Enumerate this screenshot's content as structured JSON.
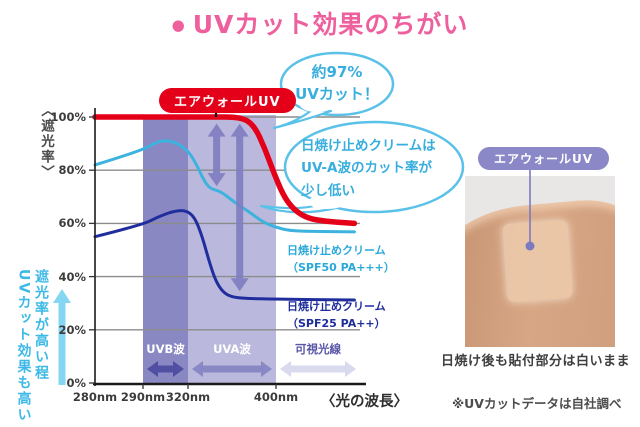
{
  "title": {
    "bullet": "●",
    "text": "UVカット効果のちがい"
  },
  "colors": {
    "accent_pink": "#ee5f9e",
    "airwall_red": "#e50019",
    "spf50_cyan": "#3cb3de",
    "spf25_navy": "#1f2e9c",
    "uvb_band": "#8a88c2",
    "uva_band": "#bab8dc",
    "gap_arrow_purple": "#7f7dc0",
    "bubble_cyan": "#5ac1e8",
    "photo_tag_purple": "#8a88c6",
    "note_cyan": "#3db9e7"
  },
  "chart_data": {
    "type": "line",
    "xlabel": "〈光の波長〉",
    "ylabel": "〈遮光率〉",
    "ylim": [
      0,
      100
    ],
    "grid": true,
    "y_ticks": [
      {
        "label": "100%",
        "pct": 100
      },
      {
        "label": "80%",
        "pct": 80
      },
      {
        "label": "60%",
        "pct": 60
      },
      {
        "label": "40%",
        "pct": 40
      },
      {
        "label": "20%",
        "pct": 20
      },
      {
        "label": "0%",
        "pct": 0
      }
    ],
    "x_ticks": [
      {
        "label": "280nm",
        "nm": 280
      },
      {
        "label": "290nm",
        "nm": 290
      },
      {
        "label": "320nm",
        "nm": 320
      },
      {
        "label": "400nm",
        "nm": 400
      }
    ],
    "bands": [
      {
        "label": "UVB波",
        "from": 290,
        "to": 320,
        "fill": "#8a88c2",
        "arrow": "#514fa1",
        "text_color": "#ffffff"
      },
      {
        "label": "UVA波",
        "from": 320,
        "to": 400,
        "fill": "#bab8dc",
        "arrow": "#8a88c4",
        "text_color": "#ffffff"
      },
      {
        "label": "可視光線",
        "from": 400,
        "to": 475,
        "fill": "none",
        "arrow": "#dadaee",
        "text_color": "#5856a6"
      }
    ],
    "series": [
      {
        "name": "エアウォールUV",
        "color": "#e50019",
        "width": 5.5,
        "label_lines": [
          "エアウォールUV",
          ""
        ],
        "points": [
          [
            280,
            100
          ],
          [
            340,
            100
          ],
          [
            368,
            100
          ],
          [
            380,
            97
          ],
          [
            390,
            88
          ],
          [
            398,
            79
          ],
          [
            406,
            71
          ],
          [
            414,
            66
          ],
          [
            425,
            62.5
          ],
          [
            438,
            61
          ],
          [
            470,
            60
          ]
        ]
      },
      {
        "name": "日焼け止めクリーム（SPF50 PA+++）",
        "color": "#3cb3de",
        "width": 3,
        "label_lines": [
          "日焼け止めクリーム",
          "（SPF50 PA+++）"
        ],
        "points": [
          [
            280,
            82
          ],
          [
            290,
            87.5
          ],
          [
            300,
            91
          ],
          [
            310,
            91
          ],
          [
            320,
            87.5
          ],
          [
            328,
            82
          ],
          [
            334,
            76.5
          ],
          [
            340,
            73
          ],
          [
            350,
            72
          ],
          [
            362,
            68
          ],
          [
            375,
            64.5
          ],
          [
            388,
            60.5
          ],
          [
            400,
            58.5
          ],
          [
            412,
            57.3
          ],
          [
            430,
            57
          ],
          [
            470,
            56.8
          ]
        ]
      },
      {
        "name": "日焼け止めクリーム（SPF25 PA++）",
        "color": "#1f2e9c",
        "width": 3,
        "label_lines": [
          "日焼け止めクリーム",
          "（SPF25 PA++）"
        ],
        "points": [
          [
            280,
            55
          ],
          [
            290,
            59.5
          ],
          [
            300,
            62.5
          ],
          [
            310,
            64.5
          ],
          [
            318,
            65
          ],
          [
            326,
            62.5
          ],
          [
            333,
            55
          ],
          [
            339,
            46
          ],
          [
            345,
            38.5
          ],
          [
            352,
            34
          ],
          [
            360,
            32.3
          ],
          [
            372,
            31.8
          ],
          [
            400,
            31.5
          ],
          [
            470,
            31.2
          ]
        ]
      }
    ],
    "gap_arrows": [
      {
        "x_nm": 346,
        "top_pct": 97.5,
        "bottom_pct": 74
      },
      {
        "x_nm": 367,
        "top_pct": 97.5,
        "bottom_pct": 34.5
      }
    ]
  },
  "bubbles": {
    "b1_line1": "約97%",
    "b1_line2": "UVカット！",
    "b2_line1": "日焼け止めクリームは",
    "b2_line2": "UV-A波のカット率が",
    "b2_line3": "少し低い"
  },
  "note": {
    "col1": "遮光率が高い程",
    "col2": "UVカット効果も高い"
  },
  "photo": {
    "tag": "エアウォールUV",
    "caption": "日焼け後も貼付部分は白いまま"
  },
  "footnote": "※UVカットデータは自社調べ"
}
